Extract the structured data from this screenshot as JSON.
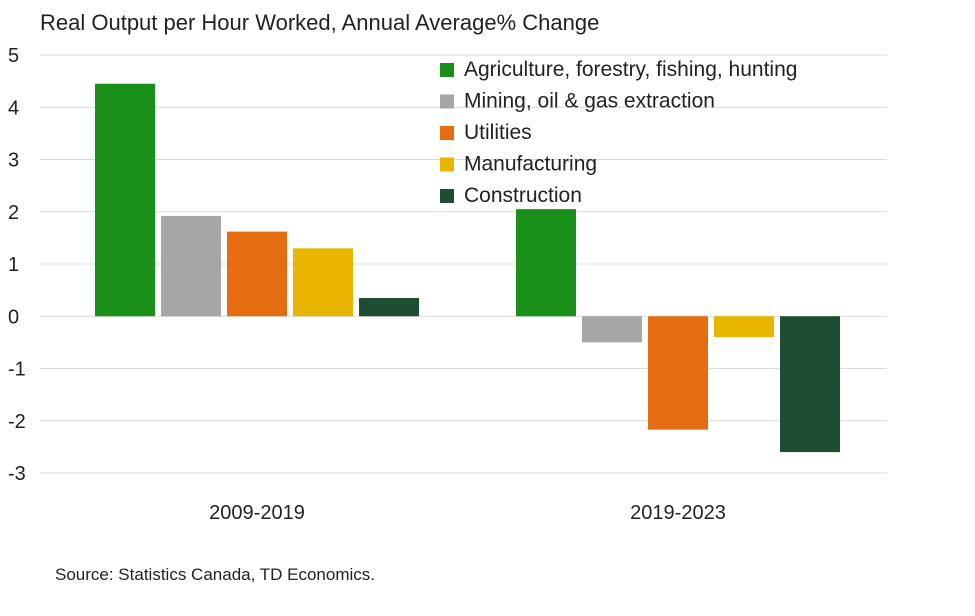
{
  "chart_data": {
    "type": "bar",
    "title": "Real Output per Hour Worked, Annual Average% Change",
    "xlabel": "",
    "ylabel": "",
    "categories": [
      "2009-2019",
      "2019-2023"
    ],
    "series": [
      {
        "name": "Agriculture, forestry, fishing, hunting",
        "color": "#1a8f1a",
        "values": [
          4.45,
          2.05
        ]
      },
      {
        "name": "Mining, oil & gas extraction",
        "color": "#a6a6a6",
        "values": [
          1.92,
          -0.5
        ]
      },
      {
        "name": "Utilities",
        "color": "#e66c12",
        "values": [
          1.62,
          -2.17
        ]
      },
      {
        "name": "Manufacturing",
        "color": "#e8b600",
        "values": [
          1.3,
          -0.4
        ]
      },
      {
        "name": "Construction",
        "color": "#1d4d33",
        "values": [
          0.35,
          -2.6
        ]
      }
    ],
    "ylim": [
      -3,
      5
    ],
    "yticks": [
      "5",
      "4",
      "3",
      "2",
      "1",
      "0",
      "-1",
      "-2",
      "-3"
    ],
    "ytick_values": [
      5,
      4,
      3,
      2,
      1,
      0,
      -1,
      -2,
      -3
    ],
    "grid": true,
    "legend_position": "top-right",
    "source": "Source: Statistics Canada, TD Economics."
  }
}
